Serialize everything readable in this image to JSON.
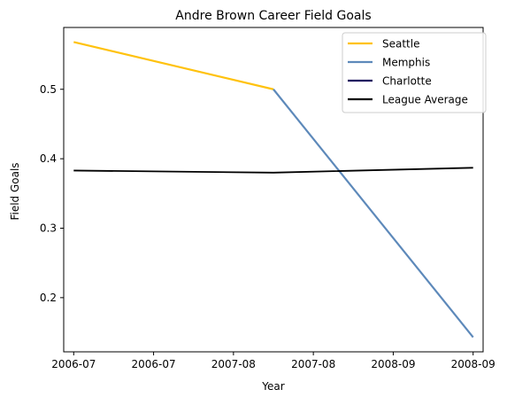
{
  "chart_data": {
    "type": "line",
    "title": "Andre Brown  Career Field Goals",
    "xlabel": "Year",
    "ylabel": "Field Goals",
    "x_tick_labels": [
      "2006-07",
      "2006-07",
      "2007-08",
      "2007-08",
      "2008-09",
      "2008-09"
    ],
    "x_points": [
      0,
      1,
      2
    ],
    "xlim": [
      -0.05,
      2.05
    ],
    "ylim": [
      0.122,
      0.589
    ],
    "y_ticks": [
      0.2,
      0.3,
      0.4,
      0.5
    ],
    "y_tick_labels": [
      "0.2",
      "0.3",
      "0.4",
      "0.5"
    ],
    "grid": false,
    "legend_position": "top-right",
    "series": [
      {
        "name": "Seattle",
        "color": "#FFC20E",
        "x": [
          0,
          1
        ],
        "values": [
          0.568,
          0.5
        ]
      },
      {
        "name": "Memphis",
        "color": "#5D89BA",
        "x": [
          1,
          2
        ],
        "values": [
          0.5,
          0.143
        ]
      },
      {
        "name": "Charlotte",
        "color": "#1D1160",
        "x": [],
        "values": []
      },
      {
        "name": "League Average",
        "color": "#000000",
        "x": [
          0,
          1,
          2
        ],
        "values": [
          0.383,
          0.38,
          0.387
        ]
      }
    ]
  }
}
